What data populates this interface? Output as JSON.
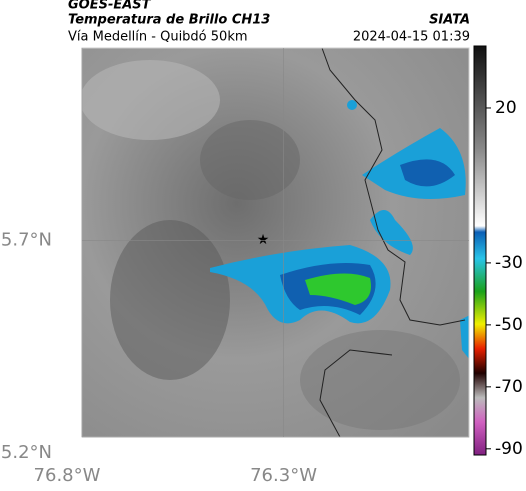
{
  "header": {
    "title": "GOES-EAST",
    "subtitle": "Temperatura de Brillo CH13",
    "source": "SIATA",
    "location": "Vía Medellín - Quibdó 50km",
    "datetime": "2024-04-15 01:39"
  },
  "map": {
    "lat_lim": [
      5.2,
      6.19
    ],
    "lon_lim": [
      -76.8,
      -75.84
    ],
    "lat_ticks": [
      {
        "value": 5.7,
        "label": "5.7°N"
      },
      {
        "value": 5.2,
        "label": "5.2°N"
      }
    ],
    "lon_ticks": [
      {
        "value": -76.8,
        "label": "76.8°W"
      },
      {
        "value": -76.3,
        "label": "76.3°W"
      }
    ]
  },
  "colorbar": {
    "lim": [
      40,
      -92
    ],
    "ticks": [
      20,
      -30,
      -50,
      -70,
      -90
    ]
  }
}
